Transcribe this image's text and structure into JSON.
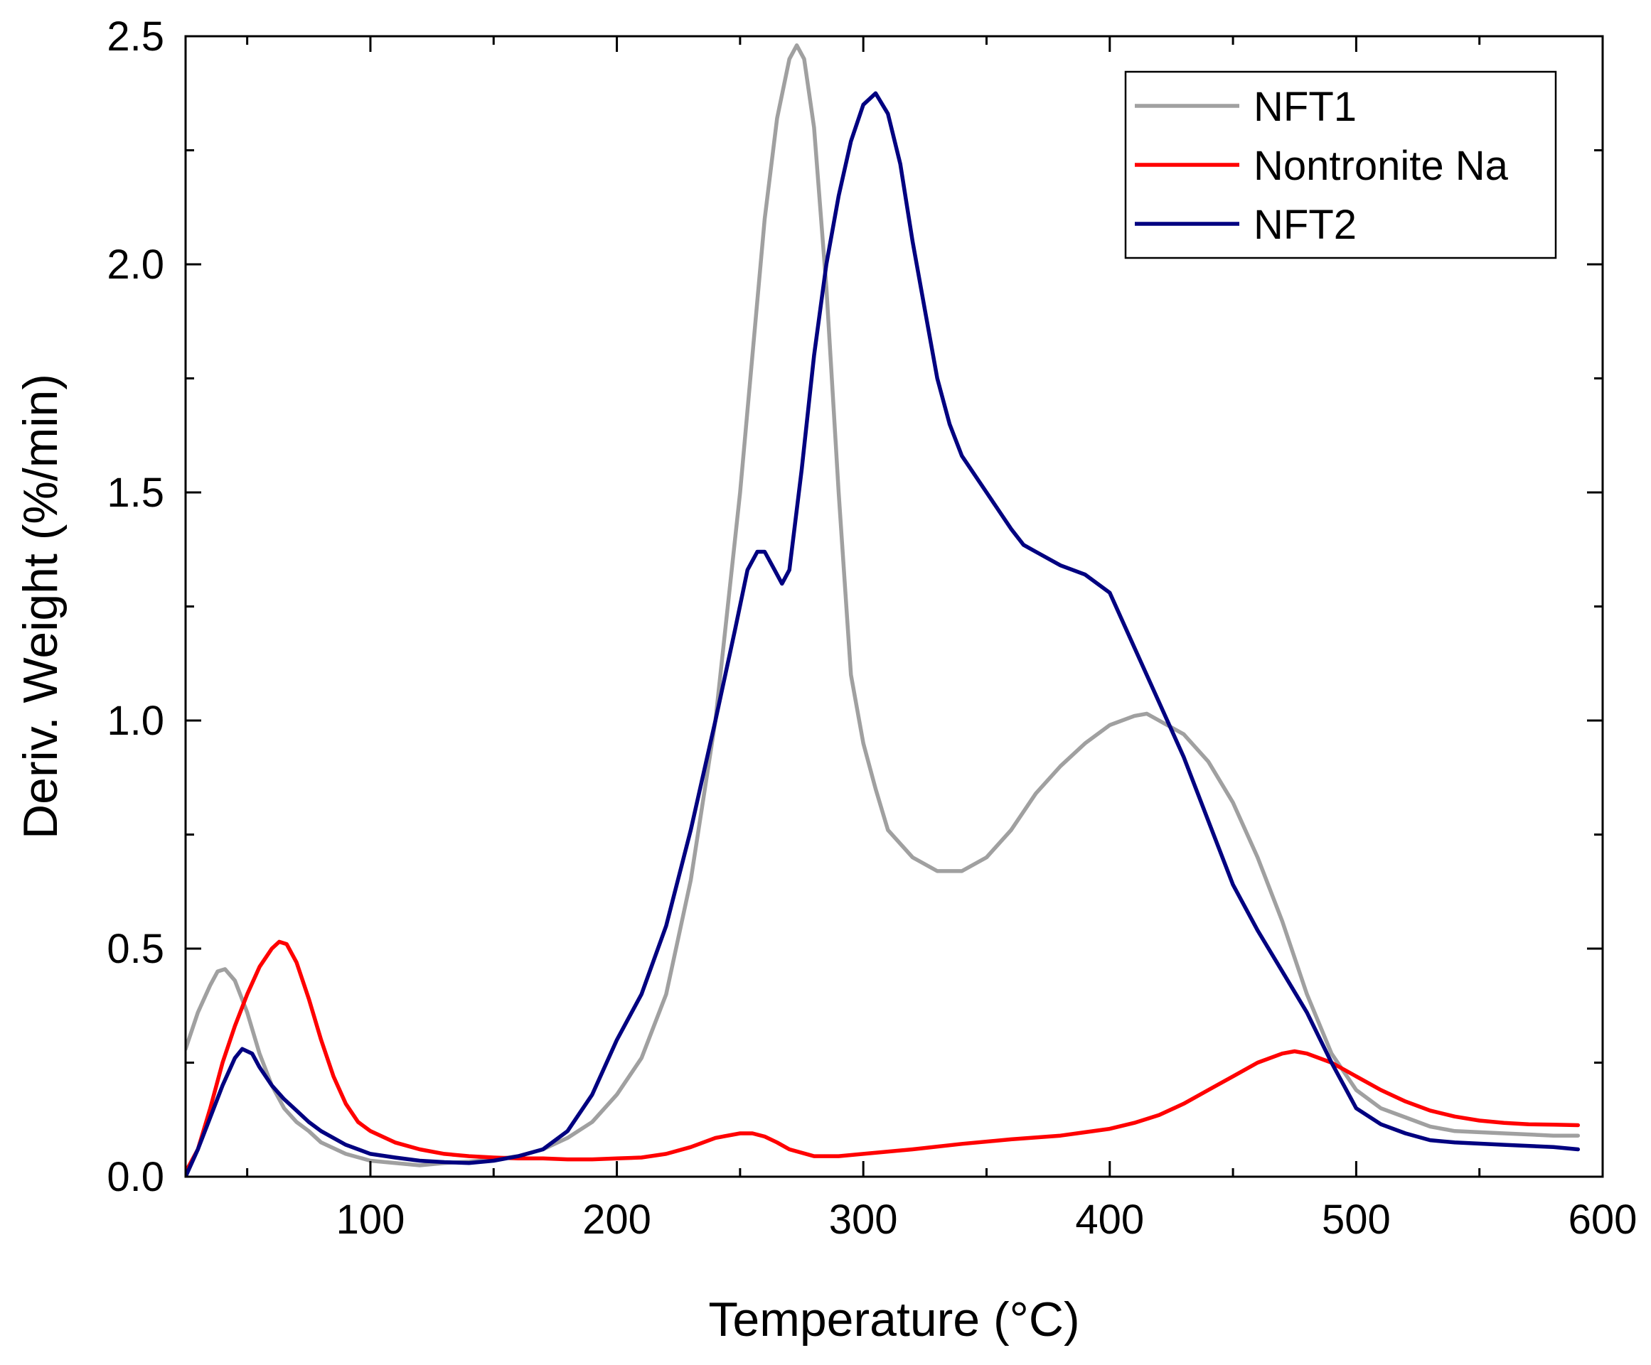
{
  "chart_data": {
    "type": "line",
    "title": "",
    "xlabel": "Temperature (°C)",
    "ylabel": "Deriv. Weight (%/min)",
    "xlim": [
      25,
      600
    ],
    "ylim": [
      0,
      2.5
    ],
    "x_ticks": [
      100,
      200,
      300,
      400,
      500,
      600
    ],
    "y_ticks": [
      0,
      0.5,
      1,
      1.5,
      2,
      2.5
    ],
    "x_tick_labels": [
      "100",
      "200",
      "300",
      "400",
      "500",
      "600"
    ],
    "y_tick_labels": [
      "0.0",
      "0.5",
      "1.0",
      "1.5",
      "2.0",
      "2.5"
    ],
    "grid": false,
    "legend_position": "top-right",
    "series": [
      {
        "name": "NFT1",
        "color": "#a0a0a0",
        "points": [
          [
            25,
            0.28
          ],
          [
            30,
            0.36
          ],
          [
            35,
            0.42
          ],
          [
            38,
            0.45
          ],
          [
            41,
            0.455
          ],
          [
            45,
            0.43
          ],
          [
            50,
            0.36
          ],
          [
            55,
            0.27
          ],
          [
            60,
            0.2
          ],
          [
            65,
            0.15
          ],
          [
            70,
            0.12
          ],
          [
            75,
            0.1
          ],
          [
            80,
            0.075
          ],
          [
            90,
            0.05
          ],
          [
            100,
            0.035
          ],
          [
            110,
            0.03
          ],
          [
            120,
            0.025
          ],
          [
            130,
            0.03
          ],
          [
            140,
            0.033
          ],
          [
            150,
            0.038
          ],
          [
            160,
            0.045
          ],
          [
            170,
            0.06
          ],
          [
            180,
            0.085
          ],
          [
            190,
            0.12
          ],
          [
            200,
            0.18
          ],
          [
            210,
            0.26
          ],
          [
            220,
            0.4
          ],
          [
            230,
            0.65
          ],
          [
            240,
            1.0
          ],
          [
            250,
            1.5
          ],
          [
            255,
            1.8
          ],
          [
            260,
            2.1
          ],
          [
            265,
            2.32
          ],
          [
            270,
            2.45
          ],
          [
            273,
            2.48
          ],
          [
            276,
            2.45
          ],
          [
            280,
            2.3
          ],
          [
            285,
            1.95
          ],
          [
            290,
            1.5
          ],
          [
            295,
            1.1
          ],
          [
            300,
            0.95
          ],
          [
            305,
            0.85
          ],
          [
            310,
            0.76
          ],
          [
            320,
            0.7
          ],
          [
            330,
            0.67
          ],
          [
            340,
            0.67
          ],
          [
            350,
            0.7
          ],
          [
            360,
            0.76
          ],
          [
            370,
            0.84
          ],
          [
            380,
            0.9
          ],
          [
            390,
            0.95
          ],
          [
            400,
            0.99
          ],
          [
            410,
            1.01
          ],
          [
            415,
            1.015
          ],
          [
            420,
            1.0
          ],
          [
            430,
            0.97
          ],
          [
            440,
            0.91
          ],
          [
            450,
            0.82
          ],
          [
            460,
            0.7
          ],
          [
            470,
            0.56
          ],
          [
            480,
            0.4
          ],
          [
            490,
            0.27
          ],
          [
            500,
            0.19
          ],
          [
            510,
            0.15
          ],
          [
            520,
            0.13
          ],
          [
            530,
            0.11
          ],
          [
            540,
            0.1
          ],
          [
            560,
            0.095
          ],
          [
            580,
            0.09
          ],
          [
            590,
            0.09
          ]
        ]
      },
      {
        "name": "Nontronite Na",
        "color": "#ff0000",
        "points": [
          [
            25,
            0.01
          ],
          [
            30,
            0.06
          ],
          [
            35,
            0.15
          ],
          [
            40,
            0.25
          ],
          [
            45,
            0.33
          ],
          [
            50,
            0.4
          ],
          [
            55,
            0.46
          ],
          [
            60,
            0.5
          ],
          [
            63,
            0.515
          ],
          [
            66,
            0.51
          ],
          [
            70,
            0.47
          ],
          [
            75,
            0.39
          ],
          [
            80,
            0.3
          ],
          [
            85,
            0.22
          ],
          [
            90,
            0.16
          ],
          [
            95,
            0.12
          ],
          [
            100,
            0.1
          ],
          [
            110,
            0.075
          ],
          [
            120,
            0.06
          ],
          [
            130,
            0.05
          ],
          [
            140,
            0.045
          ],
          [
            150,
            0.042
          ],
          [
            160,
            0.04
          ],
          [
            170,
            0.04
          ],
          [
            180,
            0.038
          ],
          [
            190,
            0.038
          ],
          [
            200,
            0.04
          ],
          [
            210,
            0.042
          ],
          [
            220,
            0.05
          ],
          [
            230,
            0.065
          ],
          [
            240,
            0.085
          ],
          [
            250,
            0.095
          ],
          [
            255,
            0.095
          ],
          [
            260,
            0.088
          ],
          [
            265,
            0.075
          ],
          [
            270,
            0.06
          ],
          [
            280,
            0.045
          ],
          [
            290,
            0.045
          ],
          [
            300,
            0.05
          ],
          [
            320,
            0.06
          ],
          [
            340,
            0.072
          ],
          [
            360,
            0.082
          ],
          [
            380,
            0.09
          ],
          [
            400,
            0.105
          ],
          [
            410,
            0.118
          ],
          [
            420,
            0.135
          ],
          [
            430,
            0.16
          ],
          [
            440,
            0.19
          ],
          [
            450,
            0.22
          ],
          [
            460,
            0.25
          ],
          [
            470,
            0.27
          ],
          [
            475,
            0.275
          ],
          [
            480,
            0.27
          ],
          [
            490,
            0.25
          ],
          [
            500,
            0.22
          ],
          [
            510,
            0.19
          ],
          [
            520,
            0.165
          ],
          [
            530,
            0.145
          ],
          [
            540,
            0.132
          ],
          [
            550,
            0.123
          ],
          [
            560,
            0.118
          ],
          [
            570,
            0.115
          ],
          [
            580,
            0.114
          ],
          [
            590,
            0.113
          ]
        ]
      },
      {
        "name": "NFT2",
        "color": "#000080",
        "points": [
          [
            25,
            0.0
          ],
          [
            30,
            0.06
          ],
          [
            35,
            0.13
          ],
          [
            40,
            0.2
          ],
          [
            45,
            0.26
          ],
          [
            48,
            0.28
          ],
          [
            52,
            0.27
          ],
          [
            55,
            0.24
          ],
          [
            60,
            0.2
          ],
          [
            65,
            0.17
          ],
          [
            70,
            0.145
          ],
          [
            75,
            0.12
          ],
          [
            80,
            0.1
          ],
          [
            90,
            0.07
          ],
          [
            100,
            0.05
          ],
          [
            110,
            0.042
          ],
          [
            120,
            0.035
          ],
          [
            130,
            0.032
          ],
          [
            140,
            0.03
          ],
          [
            150,
            0.035
          ],
          [
            160,
            0.045
          ],
          [
            170,
            0.06
          ],
          [
            180,
            0.1
          ],
          [
            190,
            0.18
          ],
          [
            200,
            0.3
          ],
          [
            210,
            0.4
          ],
          [
            220,
            0.55
          ],
          [
            230,
            0.76
          ],
          [
            240,
            1.0
          ],
          [
            248,
            1.2
          ],
          [
            253,
            1.33
          ],
          [
            257,
            1.37
          ],
          [
            260,
            1.37
          ],
          [
            264,
            1.33
          ],
          [
            267,
            1.3
          ],
          [
            270,
            1.33
          ],
          [
            275,
            1.55
          ],
          [
            280,
            1.8
          ],
          [
            285,
            2.0
          ],
          [
            290,
            2.15
          ],
          [
            295,
            2.27
          ],
          [
            300,
            2.35
          ],
          [
            305,
            2.375
          ],
          [
            310,
            2.33
          ],
          [
            315,
            2.22
          ],
          [
            320,
            2.05
          ],
          [
            325,
            1.9
          ],
          [
            330,
            1.75
          ],
          [
            335,
            1.65
          ],
          [
            340,
            1.58
          ],
          [
            350,
            1.5
          ],
          [
            360,
            1.42
          ],
          [
            365,
            1.385
          ],
          [
            370,
            1.37
          ],
          [
            380,
            1.34
          ],
          [
            390,
            1.32
          ],
          [
            400,
            1.28
          ],
          [
            410,
            1.16
          ],
          [
            420,
            1.04
          ],
          [
            430,
            0.92
          ],
          [
            440,
            0.78
          ],
          [
            450,
            0.64
          ],
          [
            460,
            0.54
          ],
          [
            470,
            0.45
          ],
          [
            480,
            0.36
          ],
          [
            490,
            0.25
          ],
          [
            495,
            0.2
          ],
          [
            500,
            0.15
          ],
          [
            510,
            0.115
          ],
          [
            520,
            0.095
          ],
          [
            530,
            0.08
          ],
          [
            540,
            0.075
          ],
          [
            560,
            0.07
          ],
          [
            580,
            0.065
          ],
          [
            590,
            0.06
          ]
        ]
      }
    ]
  }
}
